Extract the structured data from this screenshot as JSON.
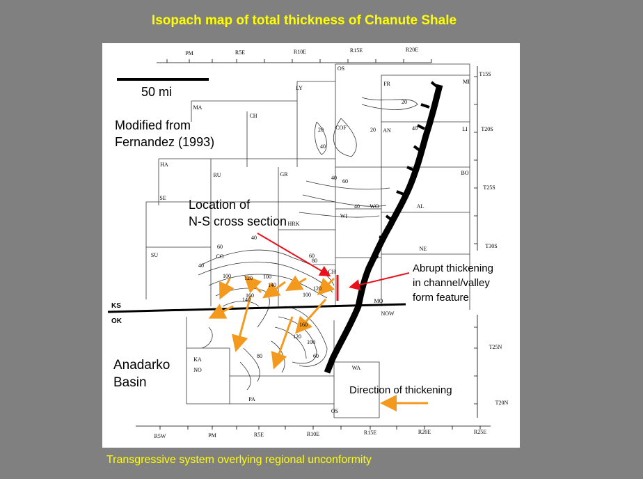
{
  "title": "Isopach map of total thickness of Chanute Shale",
  "footer": "Transgressive system overlying regional unconformity",
  "map": {
    "scale_label": "50 mi",
    "notes": {
      "source": [
        "Modified from",
        "Fernandez (1993)"
      ],
      "cross_section": [
        "Location of",
        "N-S cross section"
      ],
      "thickening": [
        "Abrupt thickening",
        "in channel/valley",
        "form feature"
      ],
      "basin": [
        "Anadarko",
        "Basin"
      ],
      "direction": "Direction of thickening"
    },
    "state_labels": [
      "KS",
      "OK"
    ],
    "top_ranges": [
      "PM",
      "R5E",
      "R10E",
      "R15E",
      "R20E"
    ],
    "bottom_ranges": [
      "R5W",
      "PM",
      "R5E",
      "R10E",
      "R15E",
      "R20E",
      "R25E"
    ],
    "townships": [
      "T15S",
      "T20S",
      "T25S",
      "T30S",
      "T25N",
      "T20N"
    ],
    "counties": [
      "OS",
      "FR",
      "MI",
      "LY",
      "MA",
      "CH",
      "COF",
      "AN",
      "LI",
      "HA",
      "RU",
      "GR",
      "BO",
      "SE",
      "WO",
      "AL",
      "WI",
      "HRK",
      "CO",
      "SU",
      "CH",
      "NE",
      "MO",
      "NOW",
      "KA",
      "NO",
      "WA",
      "PA",
      "OS"
    ],
    "contours": [
      "20",
      "20",
      "40",
      "20",
      "40",
      "40",
      "60",
      "40",
      "40",
      "60",
      "80",
      "60",
      "40",
      "100",
      "120",
      "100",
      "140",
      "160",
      "140",
      "100",
      "120",
      "100",
      "60",
      "80",
      "160",
      "120"
    ]
  }
}
